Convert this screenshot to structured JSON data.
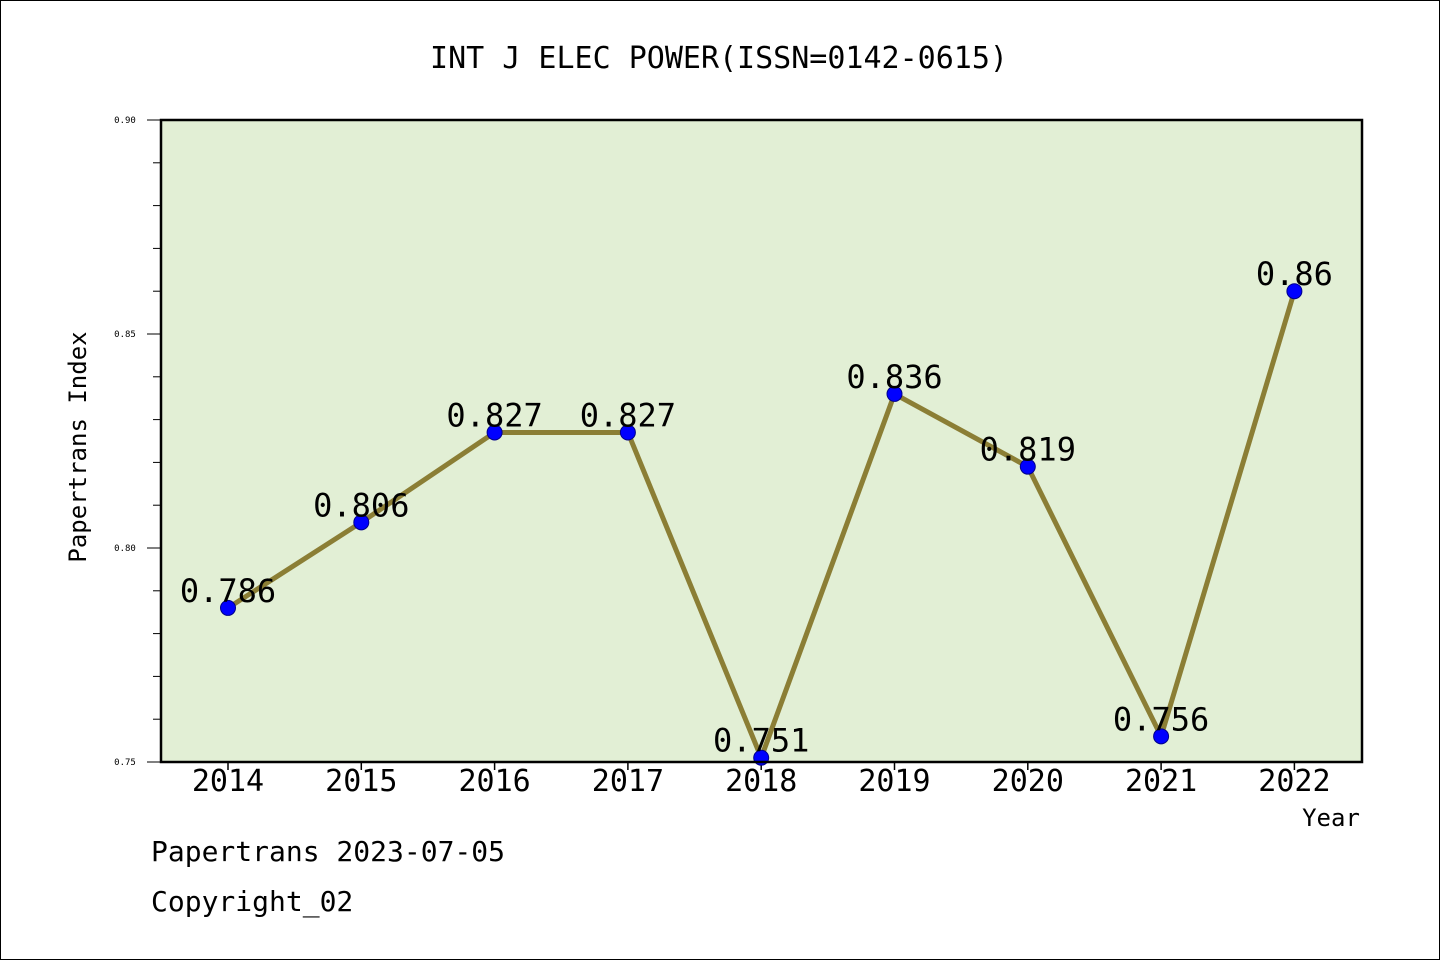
{
  "chart_data": {
    "type": "line",
    "title": "INT J ELEC POWER(ISSN=0142-0615)",
    "xlabel": "Year",
    "ylabel": "Papertrans Index",
    "categories": [
      "2014",
      "2015",
      "2016",
      "2017",
      "2018",
      "2019",
      "2020",
      "2021",
      "2022"
    ],
    "values": [
      0.786,
      0.806,
      0.827,
      0.827,
      0.751,
      0.836,
      0.819,
      0.756,
      0.86
    ],
    "data_labels": [
      "0.786",
      "0.806",
      "0.827",
      "0.827",
      "0.751",
      "0.836",
      "0.819",
      "0.756",
      "0.86"
    ],
    "ylim": [
      0.75,
      0.9
    ],
    "yticks": [
      "0.75",
      "0.80",
      "0.85",
      "0.90"
    ],
    "ytick_values": [
      0.75,
      0.8,
      0.85,
      0.9
    ],
    "grid": false,
    "colors": {
      "plot_background": "#e2efd5",
      "line": "#8b7e35",
      "marker_fill": "#0000ff",
      "marker_edge": "#00008b"
    }
  },
  "footer": {
    "date_line": "Papertrans 2023-07-05",
    "copyright_line": "Copyright_02"
  }
}
